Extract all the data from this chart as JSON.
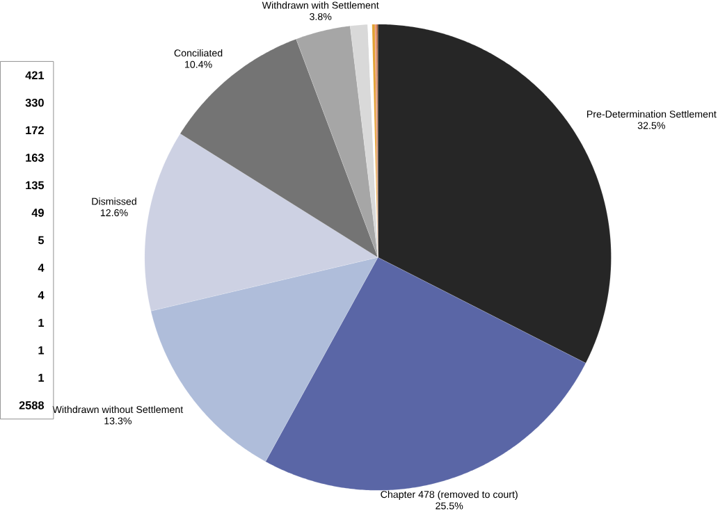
{
  "chart_data": {
    "type": "pie",
    "categories": [
      "Pre-Determination Settlement",
      "Chapter 478 (removed to court)",
      "Withdrawn without Settlement",
      "Dismissed",
      "Conciliated",
      "Withdrawn with Settlement",
      null,
      null,
      null,
      null,
      null,
      null
    ],
    "values": [
      32.5,
      25.5,
      13.3,
      12.6,
      10.4,
      3.8,
      1.2,
      0.3,
      0.2,
      0.1,
      0.05,
      0.05
    ],
    "value_labels": [
      "32.5%",
      "25.5%",
      "13.3%",
      "12.6%",
      "10.4%",
      "3.8%",
      null,
      null,
      null,
      null,
      null,
      null
    ],
    "colors": [
      "#262626",
      "#5a66a6",
      "#afbdda",
      "#cdd1e3",
      "#747474",
      "#a6a6a6",
      "#d9d9d9",
      "#ffffff",
      "#e3a235",
      "#e8907a",
      "#c55a11",
      "#8c3c0c"
    ],
    "annotations": [
      "421",
      "330",
      "172",
      "163",
      "135",
      "49",
      "5",
      "4",
      "4",
      "1",
      "1",
      "1",
      "2588"
    ]
  }
}
